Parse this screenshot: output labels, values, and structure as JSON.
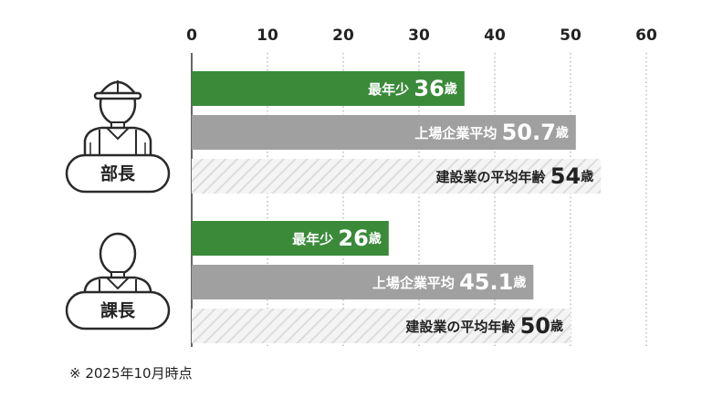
{
  "chart_data": {
    "type": "bar",
    "orientation": "horizontal",
    "x_ticks": [
      0,
      10,
      20,
      30,
      40,
      50,
      60
    ],
    "xlim": [
      0,
      60
    ],
    "grid": "vertical-dotted",
    "groups": [
      {
        "label": "部長",
        "icon": "helmet-worker-icon",
        "bars": [
          {
            "label": "最年少",
            "value": 36,
            "display": "36",
            "unit": "歳",
            "style": "solid-green"
          },
          {
            "label": "上場企業平均",
            "value": 50.7,
            "display": "50.7",
            "unit": "歳",
            "style": "solid-gray"
          },
          {
            "label": "建設業の平均年齢",
            "value": 54,
            "display": "54",
            "unit": "歳",
            "style": "hatched"
          }
        ]
      },
      {
        "label": "課長",
        "icon": "worker-icon",
        "bars": [
          {
            "label": "最年少",
            "value": 26,
            "display": "26",
            "unit": "歳",
            "style": "solid-green"
          },
          {
            "label": "上場企業平均",
            "value": 45.1,
            "display": "45.1",
            "unit": "歳",
            "style": "solid-gray"
          },
          {
            "label": "建設業の平均年齢",
            "value": 50,
            "display": "50",
            "unit": "歳",
            "style": "hatched"
          }
        ]
      }
    ]
  },
  "colors": {
    "green": "#3a8a3a",
    "gray": "#a0a0a0",
    "hatch_bg": "#f4f4f4",
    "hatch_line": "#dddddd",
    "text_dark": "#222222",
    "text_light": "#ffffff",
    "icon_stroke": "#2a2a2a"
  },
  "footnote": "※ 2025年10月時点"
}
